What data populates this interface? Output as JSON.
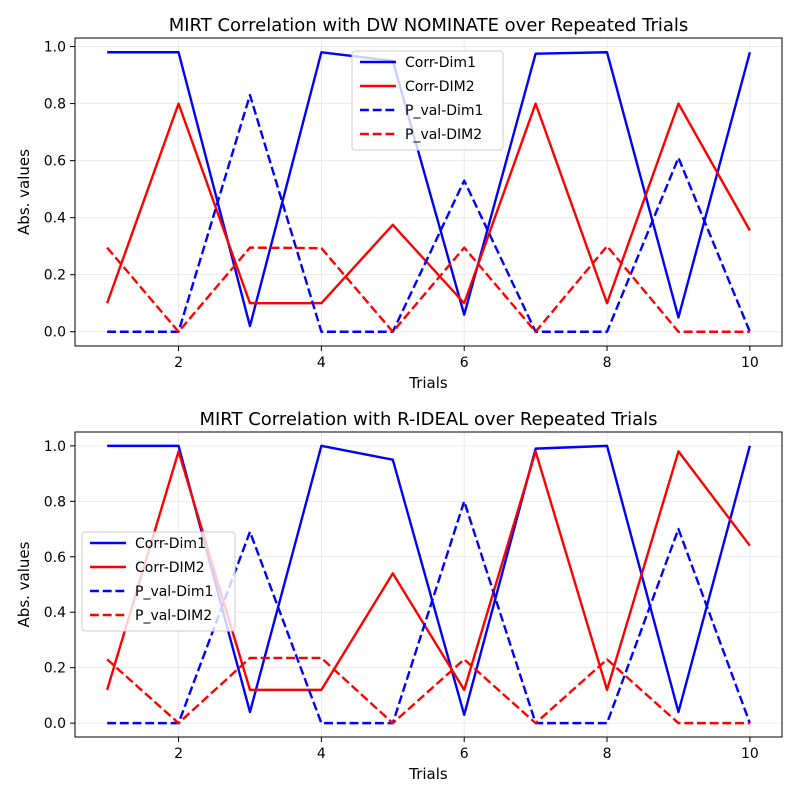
{
  "chart_data": [
    {
      "type": "line",
      "title": "MIRT Correlation with DW NOMINATE over Repeated Trials",
      "xlabel": "Trials",
      "ylabel": "Abs. values",
      "x": [
        1,
        2,
        3,
        4,
        5,
        6,
        7,
        8,
        9,
        10
      ],
      "xlim": [
        0.55,
        10.45
      ],
      "ylim": [
        -0.05,
        1.03
      ],
      "xticks": [
        2,
        4,
        6,
        8,
        10
      ],
      "yticks": [
        0.0,
        0.2,
        0.4,
        0.6,
        0.8,
        1.0
      ],
      "xtick_labels": [
        "2",
        "4",
        "6",
        "8",
        "10"
      ],
      "ytick_labels": [
        "0.0",
        "0.2",
        "0.4",
        "0.6",
        "0.8",
        "1.0"
      ],
      "grid": true,
      "legend_position": "upper center",
      "series": [
        {
          "name": "Corr-Dim1",
          "color": "#0000ff",
          "style": "solid",
          "values": [
            0.98,
            0.98,
            0.02,
            0.98,
            0.95,
            0.06,
            0.975,
            0.98,
            0.05,
            0.98
          ]
        },
        {
          "name": "Corr-DIM2",
          "color": "#ff0000",
          "style": "solid",
          "values": [
            0.1,
            0.8,
            0.1,
            0.1,
            0.375,
            0.1,
            0.8,
            0.1,
            0.8,
            0.355
          ]
        },
        {
          "name": "P_val-Dim1",
          "color": "#0000ff",
          "style": "dashed",
          "values": [
            0.0,
            0.0,
            0.83,
            0.0,
            0.0,
            0.53,
            0.0,
            0.0,
            0.61,
            0.0
          ]
        },
        {
          "name": "P_val-DIM2",
          "color": "#ff0000",
          "style": "dashed",
          "values": [
            0.295,
            0.0,
            0.295,
            0.293,
            0.0,
            0.295,
            0.0,
            0.3,
            0.0,
            0.0
          ]
        }
      ]
    },
    {
      "type": "line",
      "title": "MIRT Correlation with R-IDEAL over Repeated Trials",
      "xlabel": "Trials",
      "ylabel": "Abs. values",
      "x": [
        1,
        2,
        3,
        4,
        5,
        6,
        7,
        8,
        9,
        10
      ],
      "xlim": [
        0.55,
        10.45
      ],
      "ylim": [
        -0.05,
        1.05
      ],
      "xticks": [
        2,
        4,
        6,
        8,
        10
      ],
      "yticks": [
        0.0,
        0.2,
        0.4,
        0.6,
        0.8,
        1.0
      ],
      "xtick_labels": [
        "2",
        "4",
        "6",
        "8",
        "10"
      ],
      "ytick_labels": [
        "0.0",
        "0.2",
        "0.4",
        "0.6",
        "0.8",
        "1.0"
      ],
      "grid": true,
      "legend_position": "center left",
      "series": [
        {
          "name": "Corr-Dim1",
          "color": "#0000ff",
          "style": "solid",
          "values": [
            1.0,
            1.0,
            0.04,
            1.0,
            0.95,
            0.03,
            0.99,
            1.0,
            0.04,
            1.0
          ]
        },
        {
          "name": "Corr-DIM2",
          "color": "#ff0000",
          "style": "solid",
          "values": [
            0.12,
            0.98,
            0.12,
            0.12,
            0.54,
            0.12,
            0.98,
            0.12,
            0.98,
            0.64
          ]
        },
        {
          "name": "P_val-Dim1",
          "color": "#0000ff",
          "style": "dashed",
          "values": [
            0.0,
            0.0,
            0.69,
            0.0,
            0.0,
            0.8,
            0.0,
            0.0,
            0.7,
            0.0
          ]
        },
        {
          "name": "P_val-DIM2",
          "color": "#ff0000",
          "style": "dashed",
          "values": [
            0.23,
            0.0,
            0.235,
            0.235,
            0.0,
            0.23,
            0.0,
            0.23,
            0.0,
            0.0
          ]
        }
      ]
    }
  ]
}
